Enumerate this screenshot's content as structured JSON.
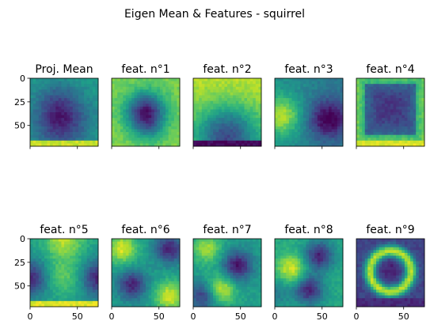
{
  "chart_data": {
    "type": "heatmap",
    "suptitle": "Eigen Mean & Features - squirrel",
    "colormap": "viridis",
    "image_extent": [
      0,
      72,
      72,
      0
    ],
    "xticks": [
      0,
      50
    ],
    "yticks": [
      0,
      25,
      50
    ],
    "panels": [
      {
        "title": "Proj. Mean",
        "pattern": "mean_dark_center_bright_bottom"
      },
      {
        "title": "feat. n°1",
        "pattern": "dark_blob_center"
      },
      {
        "title": "feat. n°2",
        "pattern": "bright_top_dark_bottom"
      },
      {
        "title": "feat. n°3",
        "pattern": "bright_left_dark_right"
      },
      {
        "title": "feat. n°4",
        "pattern": "dark_center_bright_edges"
      },
      {
        "title": "feat. n°5",
        "pattern": "dark_sides_bright_corners"
      },
      {
        "title": "feat. n°6",
        "pattern": "diagonal_blobs"
      },
      {
        "title": "feat. n°7",
        "pattern": "diagonal_mixed"
      },
      {
        "title": "feat. n°8",
        "pattern": "two_dark_blobs"
      },
      {
        "title": "feat. n°9",
        "pattern": "ring"
      }
    ]
  }
}
